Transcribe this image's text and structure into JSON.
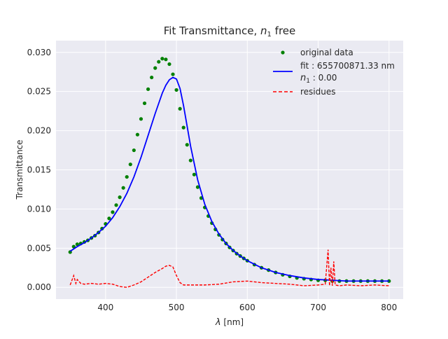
{
  "chart_data": {
    "type": "line",
    "title": "Fit Transmittance, n₁ free",
    "title_main": "Fit Transmittance, ",
    "title_var": "n",
    "title_sub": "1",
    "title_rest": " free",
    "xlabel_sym": "λ",
    "xlabel_unit": " [nm]",
    "xlabel": "λ [nm]",
    "ylabel": "Transmittance",
    "xlim": [
      330,
      820
    ],
    "ylim": [
      -0.0015,
      0.0315
    ],
    "xticks": [
      400,
      500,
      600,
      700,
      800
    ],
    "yticks": [
      0.0,
      0.005,
      0.01,
      0.015,
      0.02,
      0.025,
      0.03
    ],
    "xtick_labels": [
      "400",
      "500",
      "600",
      "700",
      "800"
    ],
    "ytick_labels": [
      "0.000",
      "0.005",
      "0.010",
      "0.015",
      "0.020",
      "0.025",
      "0.030"
    ],
    "grid": true,
    "legend_position": "top-right",
    "series": [
      {
        "name": "original data",
        "kind": "points",
        "color": "#008000",
        "x": [
          350,
          355,
          360,
          365,
          370,
          375,
          380,
          385,
          390,
          395,
          400,
          405,
          410,
          415,
          420,
          425,
          430,
          435,
          440,
          445,
          450,
          455,
          460,
          465,
          470,
          475,
          480,
          485,
          490,
          495,
          500,
          505,
          510,
          515,
          520,
          525,
          530,
          535,
          540,
          545,
          550,
          555,
          560,
          565,
          570,
          575,
          580,
          585,
          590,
          595,
          600,
          610,
          620,
          630,
          640,
          650,
          660,
          670,
          680,
          690,
          700,
          710,
          720,
          730,
          740,
          750,
          760,
          770,
          780,
          790,
          800
        ],
        "y": [
          0.0045,
          0.0052,
          0.0055,
          0.0056,
          0.0058,
          0.006,
          0.0063,
          0.0066,
          0.007,
          0.0075,
          0.0081,
          0.0088,
          0.0096,
          0.0105,
          0.0115,
          0.0127,
          0.0141,
          0.0157,
          0.0175,
          0.0195,
          0.0215,
          0.0235,
          0.0253,
          0.0268,
          0.028,
          0.0288,
          0.0292,
          0.0291,
          0.0285,
          0.0272,
          0.0252,
          0.0228,
          0.0204,
          0.0182,
          0.0162,
          0.0144,
          0.0128,
          0.0114,
          0.0102,
          0.0091,
          0.0082,
          0.0074,
          0.0067,
          0.0061,
          0.0056,
          0.0051,
          0.0047,
          0.0043,
          0.004,
          0.0037,
          0.0034,
          0.0029,
          0.0025,
          0.0022,
          0.0019,
          0.0016,
          0.0014,
          0.0012,
          0.0011,
          0.001,
          0.0009,
          0.0009,
          0.0008,
          0.0008,
          0.0008,
          0.0008,
          0.0008,
          0.0008,
          0.0008,
          0.0008,
          0.0008
        ]
      },
      {
        "name_main": "fit : 655700871.33 nm",
        "name_var": "n",
        "name_sub": "1",
        "name_rest": " : 0.00",
        "kind": "line",
        "color": "#0000ff",
        "x": [
          350,
          360,
          370,
          380,
          390,
          400,
          410,
          420,
          430,
          440,
          450,
          460,
          470,
          480,
          485,
          490,
          495,
          500,
          505,
          510,
          520,
          530,
          540,
          550,
          560,
          570,
          580,
          590,
          600,
          620,
          640,
          660,
          680,
          700,
          720,
          740,
          760,
          780,
          800
        ],
        "y": [
          0.0046,
          0.0052,
          0.0057,
          0.0063,
          0.007,
          0.0078,
          0.0089,
          0.0103,
          0.012,
          0.0141,
          0.0166,
          0.0194,
          0.0222,
          0.0248,
          0.0258,
          0.0265,
          0.0268,
          0.0266,
          0.0254,
          0.0232,
          0.018,
          0.0137,
          0.0106,
          0.0084,
          0.0068,
          0.0056,
          0.0047,
          0.004,
          0.0034,
          0.0025,
          0.0019,
          0.0015,
          0.0012,
          0.001,
          0.0009,
          0.0008,
          0.0008,
          0.0008,
          0.0008
        ]
      },
      {
        "name": "residues",
        "kind": "dashed",
        "color": "#ff0000",
        "x": [
          350,
          355,
          358,
          360,
          365,
          370,
          380,
          390,
          400,
          410,
          420,
          430,
          440,
          450,
          460,
          470,
          480,
          485,
          490,
          495,
          500,
          505,
          510,
          520,
          540,
          560,
          580,
          600,
          620,
          640,
          660,
          680,
          700,
          710,
          714,
          716,
          718,
          720,
          722,
          724,
          730,
          740,
          760,
          780,
          800
        ],
        "y": [
          0.0003,
          0.0015,
          0.0005,
          0.001,
          0.0005,
          0.0004,
          0.0005,
          0.0004,
          0.0005,
          0.0004,
          0.0001,
          0.0,
          0.0003,
          0.0007,
          0.0013,
          0.0019,
          0.0024,
          0.0027,
          0.0028,
          0.0026,
          0.0015,
          0.0006,
          0.0003,
          0.0003,
          0.0003,
          0.0004,
          0.0007,
          0.0008,
          0.0006,
          0.0005,
          0.0004,
          0.0002,
          0.0003,
          0.0004,
          0.0048,
          0.0002,
          0.0025,
          0.0002,
          0.0033,
          0.0003,
          0.0002,
          0.0003,
          0.0002,
          0.0003,
          0.0002
        ]
      }
    ]
  }
}
